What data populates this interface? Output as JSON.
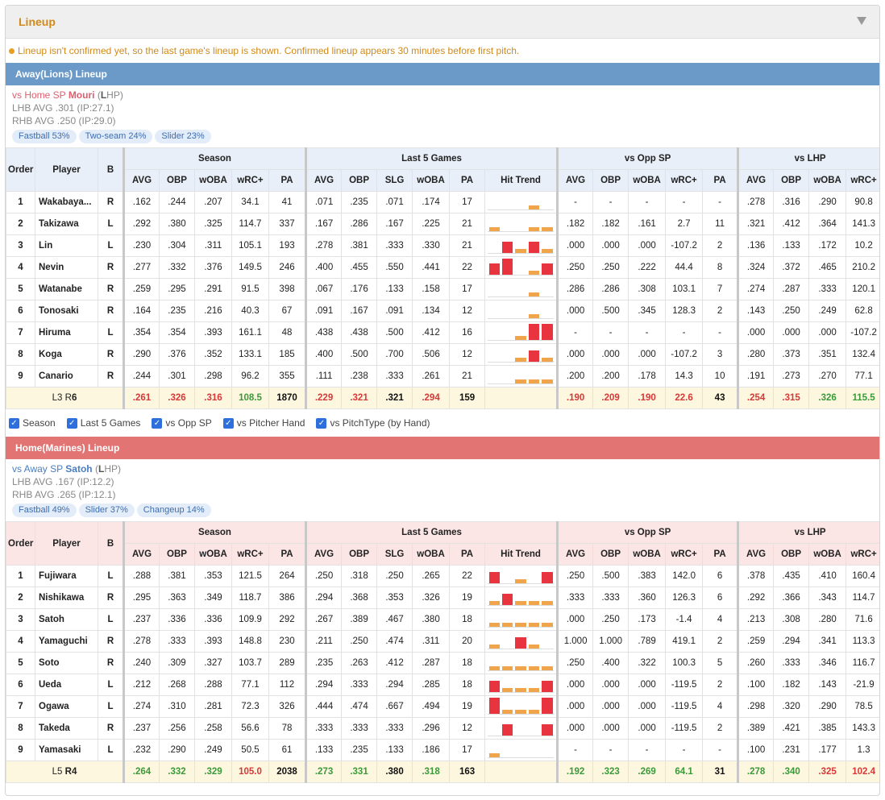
{
  "panel": {
    "title": "Lineup",
    "notice": "Lineup isn't confirmed yet, so the last game's lineup is shown. Confirmed lineup appears 30 minutes before first pitch."
  },
  "headers": {
    "order": "Order",
    "player": "Player",
    "b": "B",
    "season": "Season",
    "last5": "Last 5 Games",
    "vsopp": "vs Opp SP",
    "vslhp": "vs LHP",
    "season_cols": [
      "AVG",
      "OBP",
      "wOBA",
      "wRC+",
      "PA"
    ],
    "last5_cols": [
      "AVG",
      "OBP",
      "SLG",
      "wOBA",
      "PA",
      "Hit Trend"
    ],
    "vsopp_cols": [
      "AVG",
      "OBP",
      "wOBA",
      "wRC+",
      "PA"
    ],
    "vslhp_cols": [
      "AVG",
      "OBP",
      "wOBA",
      "wRC+"
    ]
  },
  "away": {
    "title": "Away(Lions) Lineup",
    "sp": {
      "prefix": "vs Home SP",
      "name": "Mouri",
      "hand_open": "(",
      "hand_bold": "L",
      "hand_rest": "HP)",
      "lhb": "LHB AVG .301 (IP:27.1)",
      "rhb": "RHB AVG .250 (IP:29.0)"
    },
    "pills": [
      "Fastball 53%",
      "Two-seam 24%",
      "Slider 23%"
    ],
    "rows": [
      {
        "o": "1",
        "n": "Wakabaya...",
        "b": "R",
        "s": [
          ".162",
          ".244",
          ".207",
          "34.1",
          "41"
        ],
        "l": [
          ".071",
          ".235",
          ".071",
          ".174",
          "17"
        ],
        "t": [
          0,
          0,
          0,
          1,
          0
        ],
        "v": [
          "-",
          "-",
          "-",
          "-",
          "-"
        ],
        "h": [
          ".278",
          ".316",
          ".290",
          "90.8"
        ]
      },
      {
        "o": "2",
        "n": "Takizawa",
        "b": "L",
        "s": [
          ".292",
          ".380",
          ".325",
          "114.7",
          "337"
        ],
        "l": [
          ".167",
          ".286",
          ".167",
          ".225",
          "21"
        ],
        "t": [
          1,
          0,
          0,
          1,
          1
        ],
        "v": [
          ".182",
          ".182",
          ".161",
          "2.7",
          "11"
        ],
        "h": [
          ".321",
          ".412",
          ".364",
          "141.3"
        ]
      },
      {
        "o": "3",
        "n": "Lin",
        "b": "L",
        "s": [
          ".230",
          ".304",
          ".311",
          "105.1",
          "193"
        ],
        "l": [
          ".278",
          ".381",
          ".333",
          ".330",
          "21"
        ],
        "t": [
          0,
          2,
          1,
          2,
          1
        ],
        "v": [
          ".000",
          ".000",
          ".000",
          "-107.2",
          "2"
        ],
        "h": [
          ".136",
          ".133",
          ".172",
          "10.2"
        ]
      },
      {
        "o": "4",
        "n": "Nevin",
        "b": "R",
        "s": [
          ".277",
          ".332",
          ".376",
          "149.5",
          "246"
        ],
        "l": [
          ".400",
          ".455",
          ".550",
          ".441",
          "22"
        ],
        "t": [
          2,
          3,
          0,
          1,
          2
        ],
        "v": [
          ".250",
          ".250",
          ".222",
          "44.4",
          "8"
        ],
        "h": [
          ".324",
          ".372",
          ".465",
          "210.2"
        ]
      },
      {
        "o": "5",
        "n": "Watanabe",
        "b": "R",
        "s": [
          ".259",
          ".295",
          ".291",
          "91.5",
          "398"
        ],
        "l": [
          ".067",
          ".176",
          ".133",
          ".158",
          "17"
        ],
        "t": [
          0,
          0,
          0,
          1,
          0
        ],
        "v": [
          ".286",
          ".286",
          ".308",
          "103.1",
          "7"
        ],
        "h": [
          ".274",
          ".287",
          ".333",
          "120.1"
        ]
      },
      {
        "o": "6",
        "n": "Tonosaki",
        "b": "R",
        "s": [
          ".164",
          ".235",
          ".216",
          "40.3",
          "67"
        ],
        "l": [
          ".091",
          ".167",
          ".091",
          ".134",
          "12"
        ],
        "t": [
          0,
          0,
          0,
          1,
          0
        ],
        "v": [
          ".000",
          ".500",
          ".345",
          "128.3",
          "2"
        ],
        "h": [
          ".143",
          ".250",
          ".249",
          "62.8"
        ]
      },
      {
        "o": "7",
        "n": "Hiruma",
        "b": "L",
        "s": [
          ".354",
          ".354",
          ".393",
          "161.1",
          "48"
        ],
        "l": [
          ".438",
          ".438",
          ".500",
          ".412",
          "16"
        ],
        "t": [
          0,
          0,
          1,
          3,
          3
        ],
        "v": [
          "-",
          "-",
          "-",
          "-",
          "-"
        ],
        "h": [
          ".000",
          ".000",
          ".000",
          "-107.2"
        ]
      },
      {
        "o": "8",
        "n": "Koga",
        "b": "R",
        "s": [
          ".290",
          ".376",
          ".352",
          "133.1",
          "185"
        ],
        "l": [
          ".400",
          ".500",
          ".700",
          ".506",
          "12"
        ],
        "t": [
          0,
          0,
          1,
          2,
          1
        ],
        "v": [
          ".000",
          ".000",
          ".000",
          "-107.2",
          "3"
        ],
        "h": [
          ".280",
          ".373",
          ".351",
          "132.4"
        ]
      },
      {
        "o": "9",
        "n": "Canario",
        "b": "R",
        "s": [
          ".244",
          ".301",
          ".298",
          "96.2",
          "355"
        ],
        "l": [
          ".111",
          ".238",
          ".333",
          ".261",
          "21"
        ],
        "t": [
          0,
          0,
          1,
          1,
          1
        ],
        "v": [
          ".200",
          ".200",
          ".178",
          "14.3",
          "10"
        ],
        "h": [
          ".191",
          ".273",
          ".270",
          "77.1"
        ]
      }
    ],
    "sum": {
      "lr_l": "L3 R",
      "lr_r": "6",
      "s": [
        ".261",
        ".326",
        ".316",
        "108.5",
        "1870"
      ],
      "l": [
        ".229",
        ".321",
        ".321",
        ".294",
        "159"
      ],
      "v": [
        ".190",
        ".209",
        ".190",
        "22.6",
        "43"
      ],
      "h": [
        ".254",
        ".315",
        ".326",
        "115.5"
      ]
    }
  },
  "checks": [
    "Season",
    "Last 5 Games",
    "vs Opp SP",
    "vs Pitcher Hand",
    "vs PitchType (by Hand)"
  ],
  "home": {
    "title": "Home(Marines) Lineup",
    "sp": {
      "prefix": "vs Away SP",
      "name": "Satoh",
      "hand_open": "(",
      "hand_bold": "L",
      "hand_rest": "HP)",
      "lhb": "LHB AVG .167 (IP:12.2)",
      "rhb": "RHB AVG .265 (IP:12.1)"
    },
    "pills": [
      "Fastball 49%",
      "Slider 37%",
      "Changeup 14%"
    ],
    "rows": [
      {
        "o": "1",
        "n": "Fujiwara",
        "b": "L",
        "s": [
          ".288",
          ".381",
          ".353",
          "121.5",
          "264"
        ],
        "l": [
          ".250",
          ".318",
          ".250",
          ".265",
          "22"
        ],
        "t": [
          2,
          0,
          1,
          0,
          2
        ],
        "v": [
          ".250",
          ".500",
          ".383",
          "142.0",
          "6"
        ],
        "h": [
          ".378",
          ".435",
          ".410",
          "160.4"
        ]
      },
      {
        "o": "2",
        "n": "Nishikawa",
        "b": "R",
        "s": [
          ".295",
          ".363",
          ".349",
          "118.7",
          "386"
        ],
        "l": [
          ".294",
          ".368",
          ".353",
          ".326",
          "19"
        ],
        "t": [
          1,
          2,
          1,
          1,
          1
        ],
        "v": [
          ".333",
          ".333",
          ".360",
          "126.3",
          "6"
        ],
        "h": [
          ".292",
          ".366",
          ".343",
          "114.7"
        ]
      },
      {
        "o": "3",
        "n": "Satoh",
        "b": "L",
        "s": [
          ".237",
          ".336",
          ".336",
          "109.9",
          "292"
        ],
        "l": [
          ".267",
          ".389",
          ".467",
          ".380",
          "18"
        ],
        "t": [
          1,
          1,
          1,
          1,
          1
        ],
        "v": [
          ".000",
          ".250",
          ".173",
          "-1.4",
          "4"
        ],
        "h": [
          ".213",
          ".308",
          ".280",
          "71.6"
        ]
      },
      {
        "o": "4",
        "n": "Yamaguchi",
        "b": "R",
        "s": [
          ".278",
          ".333",
          ".393",
          "148.8",
          "230"
        ],
        "l": [
          ".211",
          ".250",
          ".474",
          ".311",
          "20"
        ],
        "t": [
          1,
          0,
          2,
          1,
          0
        ],
        "v": [
          "1.000",
          "1.000",
          ".789",
          "419.1",
          "2"
        ],
        "h": [
          ".259",
          ".294",
          ".341",
          "113.3"
        ]
      },
      {
        "o": "5",
        "n": "Soto",
        "b": "R",
        "s": [
          ".240",
          ".309",
          ".327",
          "103.7",
          "289"
        ],
        "l": [
          ".235",
          ".263",
          ".412",
          ".287",
          "18"
        ],
        "t": [
          1,
          1,
          1,
          1,
          1
        ],
        "v": [
          ".250",
          ".400",
          ".322",
          "100.3",
          "5"
        ],
        "h": [
          ".260",
          ".333",
          ".346",
          "116.7"
        ]
      },
      {
        "o": "6",
        "n": "Ueda",
        "b": "L",
        "s": [
          ".212",
          ".268",
          ".288",
          "77.1",
          "112"
        ],
        "l": [
          ".294",
          ".333",
          ".294",
          ".285",
          "18"
        ],
        "t": [
          2,
          1,
          1,
          1,
          2
        ],
        "v": [
          ".000",
          ".000",
          ".000",
          "-119.5",
          "2"
        ],
        "h": [
          ".100",
          ".182",
          ".143",
          "-21.9"
        ]
      },
      {
        "o": "7",
        "n": "Ogawa",
        "b": "L",
        "s": [
          ".274",
          ".310",
          ".281",
          "72.3",
          "326"
        ],
        "l": [
          ".444",
          ".474",
          ".667",
          ".494",
          "19"
        ],
        "t": [
          3,
          1,
          1,
          1,
          3
        ],
        "v": [
          ".000",
          ".000",
          ".000",
          "-119.5",
          "4"
        ],
        "h": [
          ".298",
          ".320",
          ".290",
          "78.5"
        ]
      },
      {
        "o": "8",
        "n": "Takeda",
        "b": "R",
        "s": [
          ".237",
          ".256",
          ".258",
          "56.6",
          "78"
        ],
        "l": [
          ".333",
          ".333",
          ".333",
          ".296",
          "12"
        ],
        "t": [
          0,
          2,
          0,
          0,
          2
        ],
        "v": [
          ".000",
          ".000",
          ".000",
          "-119.5",
          "2"
        ],
        "h": [
          ".389",
          ".421",
          ".385",
          "143.3"
        ]
      },
      {
        "o": "9",
        "n": "Yamasaki",
        "b": "L",
        "s": [
          ".232",
          ".290",
          ".249",
          "50.5",
          "61"
        ],
        "l": [
          ".133",
          ".235",
          ".133",
          ".186",
          "17"
        ],
        "t": [
          1,
          0,
          0,
          0,
          0
        ],
        "v": [
          "-",
          "-",
          "-",
          "-",
          "-"
        ],
        "h": [
          ".100",
          ".231",
          ".177",
          "1.3"
        ]
      }
    ],
    "sum": {
      "lr_l": "L5 ",
      "lr_r": "R4",
      "s": [
        ".264",
        ".332",
        ".329",
        "105.0",
        "2038"
      ],
      "l": [
        ".273",
        ".331",
        ".380",
        ".318",
        "163"
      ],
      "v": [
        ".192",
        ".323",
        ".269",
        "64.1",
        "31"
      ],
      "h": [
        ".278",
        ".340",
        ".325",
        "102.4"
      ]
    }
  },
  "colors": {
    "away_bar": "#6b9ac9",
    "home_bar": "#e27474",
    "accent": "#d08a1a",
    "trend_hit": "#e8343f",
    "trend_out": "#f0a54a"
  }
}
